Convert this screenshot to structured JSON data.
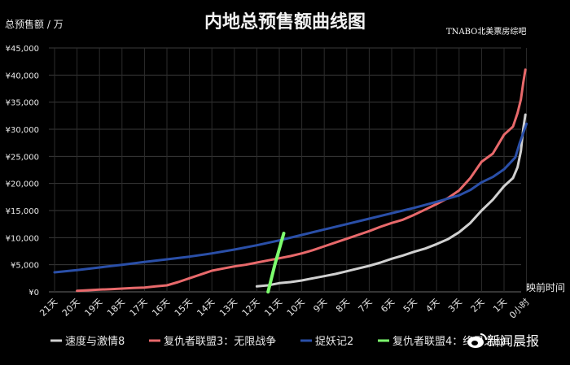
{
  "chart_data": {
    "type": "line",
    "title": "内地总预售额曲线图",
    "ylabel": "总预售额 / 万",
    "xlabel": "映前时间",
    "ylim": [
      0,
      45000
    ],
    "yticks": [
      0,
      5000,
      10000,
      15000,
      20000,
      25000,
      30000,
      35000,
      40000,
      45000
    ],
    "ytick_labels": [
      "¥0",
      "¥5,000",
      "¥10,000",
      "¥15,000",
      "¥20,000",
      "¥25,000",
      "¥30,000",
      "¥35,000",
      "¥40,000",
      "¥45,000"
    ],
    "x_positions": [
      21,
      20,
      19,
      18,
      17,
      16,
      15,
      14,
      13,
      12,
      11,
      10,
      9,
      8,
      7,
      6,
      5,
      4,
      3,
      2,
      1,
      0
    ],
    "categories": [
      "21天",
      "20天",
      "19天",
      "18天",
      "17天",
      "16天",
      "15天",
      "14天",
      "13天",
      "12天",
      "11天",
      "10天",
      "9天",
      "8天",
      "7天",
      "6天",
      "5天",
      "4天",
      "3天",
      "2天",
      "1天",
      "0小时"
    ],
    "grid": true,
    "legend_position": "bottom",
    "series": [
      {
        "name": "速度与激情8",
        "color": "#d0d0d0",
        "x": [
          12,
          11.5,
          11,
          10.5,
          10,
          9.5,
          9,
          8.5,
          8,
          7.5,
          7,
          6.5,
          6,
          5.5,
          5,
          4.5,
          4,
          3.5,
          3,
          2.5,
          2,
          1.5,
          1,
          0.6,
          0.4,
          0.25,
          0.15,
          0.05
        ],
        "values": [
          1000,
          1200,
          1600,
          1800,
          2100,
          2500,
          2900,
          3300,
          3800,
          4300,
          4800,
          5400,
          6100,
          6700,
          7400,
          8000,
          8800,
          9700,
          11000,
          12700,
          15000,
          17000,
          19500,
          21000,
          23000,
          26000,
          30000,
          32700
        ]
      },
      {
        "name": "复仇者联盟3：无限战争",
        "color": "#e8696b",
        "x": [
          20,
          19.5,
          19,
          18.5,
          18,
          17.5,
          17,
          16.5,
          16,
          15.5,
          15,
          14.5,
          14,
          13.5,
          13,
          12.5,
          12,
          11.5,
          11,
          10.5,
          10,
          9.5,
          9,
          8.5,
          8,
          7.5,
          7,
          6.5,
          6,
          5.5,
          5,
          4.5,
          4,
          3.5,
          3,
          2.5,
          2,
          1.5,
          1,
          0.6,
          0.4,
          0.25,
          0.15,
          0.05
        ],
        "values": [
          200,
          300,
          400,
          500,
          600,
          700,
          800,
          1000,
          1200,
          1800,
          2500,
          3200,
          3900,
          4300,
          4700,
          5000,
          5400,
          5800,
          6200,
          6600,
          7100,
          7700,
          8400,
          9100,
          9800,
          10500,
          11200,
          12000,
          12700,
          13300,
          14200,
          15200,
          16200,
          17300,
          18700,
          21000,
          24000,
          25500,
          29000,
          30500,
          33000,
          35500,
          38500,
          41000
        ]
      },
      {
        "name": "捉妖记2",
        "color": "#2a4fa8",
        "x": [
          21,
          20,
          19,
          18,
          17,
          16,
          15,
          14,
          13,
          12,
          11,
          10,
          9,
          8,
          7,
          6,
          5,
          4,
          3,
          2.5,
          2,
          1.5,
          1,
          0.5,
          0.3,
          0
        ],
        "values": [
          3600,
          4000,
          4500,
          5000,
          5500,
          6000,
          6500,
          7100,
          7800,
          8600,
          9500,
          10500,
          11500,
          12500,
          13500,
          14500,
          15500,
          16600,
          17800,
          18800,
          20200,
          21200,
          22600,
          24800,
          27500,
          31000
        ]
      },
      {
        "name": "复仇者联盟4：终局之战",
        "color": "#7dff6e",
        "x": [
          11.5,
          11.2,
          10.8
        ],
        "values": [
          0,
          5000,
          10800
        ]
      }
    ]
  },
  "legend_labels": [
    "速度与激情8",
    "复仇者联盟3：无限战争",
    "捉妖记2",
    "复仇者联盟4：终局之战"
  ],
  "watermark": "TNABO北美票房综吧",
  "logo": {
    "text": "新闻晨报",
    "icon": "weibo-icon"
  }
}
